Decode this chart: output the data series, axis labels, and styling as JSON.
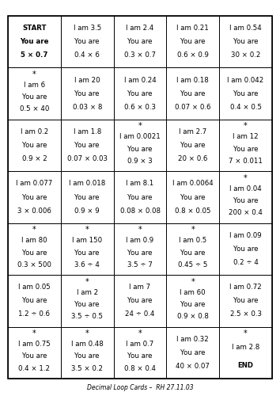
{
  "title": "Decimal Loop Cards –  RH 27.11.03",
  "rows": 7,
  "cols": 5,
  "cells": [
    [
      "START\nYou are\n5 × 0.7",
      "I am 3.5\nYou are\n0.4 × 6",
      "I am 2.4\nYou are\n0.3 × 0.7",
      "I am 0.21\nYou are\n0.6 × 0.9",
      "I am 0.54\nYou are\n30 × 0.2"
    ],
    [
      "*\nI am 6\nYou are\n0.5 × 40",
      "I am 20\nYou are\n0.03 × 8",
      "I am 0.24\nYou are\n0.6 × 0.3",
      "I am 0.18\nYou are\n0.07 × 0.6",
      "I am 0.042\nYou are\n0.4 × 0.5"
    ],
    [
      "I am 0.2\nYou are\n0.9 × 2",
      "I am 1.8\nYou are\n0.07 × 0.03",
      "*\nI am 0.0021\nYou are\n0.9 × 3",
      "I am 2.7\nYou are\n20 × 0.6",
      "*\nI am 12\nYou are\n7 × 0.011"
    ],
    [
      "I am 0.077\nYou are\n3 × 0.006",
      "I am 0.018\nYou are\n0.9 × 9",
      "I am 8.1\nYou are\n0.08 × 0.08",
      "I am 0.0064\nYou are\n0.8 × 0.05",
      "*\nI am 0.04\nYou are\n200 × 0.4"
    ],
    [
      "*\nI am 80\nYou are\n0.3 × 500",
      "*\nI am 150\nYou are\n3.6 ÷ 4",
      "*\nI am 0.9\nYou are\n3.5 ÷ 7",
      "*\nI am 0.5\nYou are\n0.45 ÷ 5",
      "I am 0.09\nYou are\n0.2 ÷ 4"
    ],
    [
      "I am 0.05\nYou are\n1.2 ÷ 0.6",
      "*\nI am 2\nYou are\n3.5 ÷ 0.5",
      "I am 7\nYou are\n24 ÷ 0.4",
      "*\nI am 60\nYou are\n0.9 × 0.8",
      "I am 0.72\nYou are\n2.5 × 0.3"
    ],
    [
      "*\nI am 0.75\nYou are\n0.4 × 1.2",
      "*\nI am 0.48\nYou are\n3.5 × 0.2",
      "*\nI am 0.7\nYou are\n0.8 × 0.4",
      "I am 0.32\nYou are\n40 × 0.07",
      "*\nI am 2.8\nEND"
    ]
  ],
  "bg_color": "white",
  "border_color": "black",
  "text_color": "black",
  "font_size": 6.2,
  "star_font_size": 7.0,
  "title_font_size": 5.5
}
